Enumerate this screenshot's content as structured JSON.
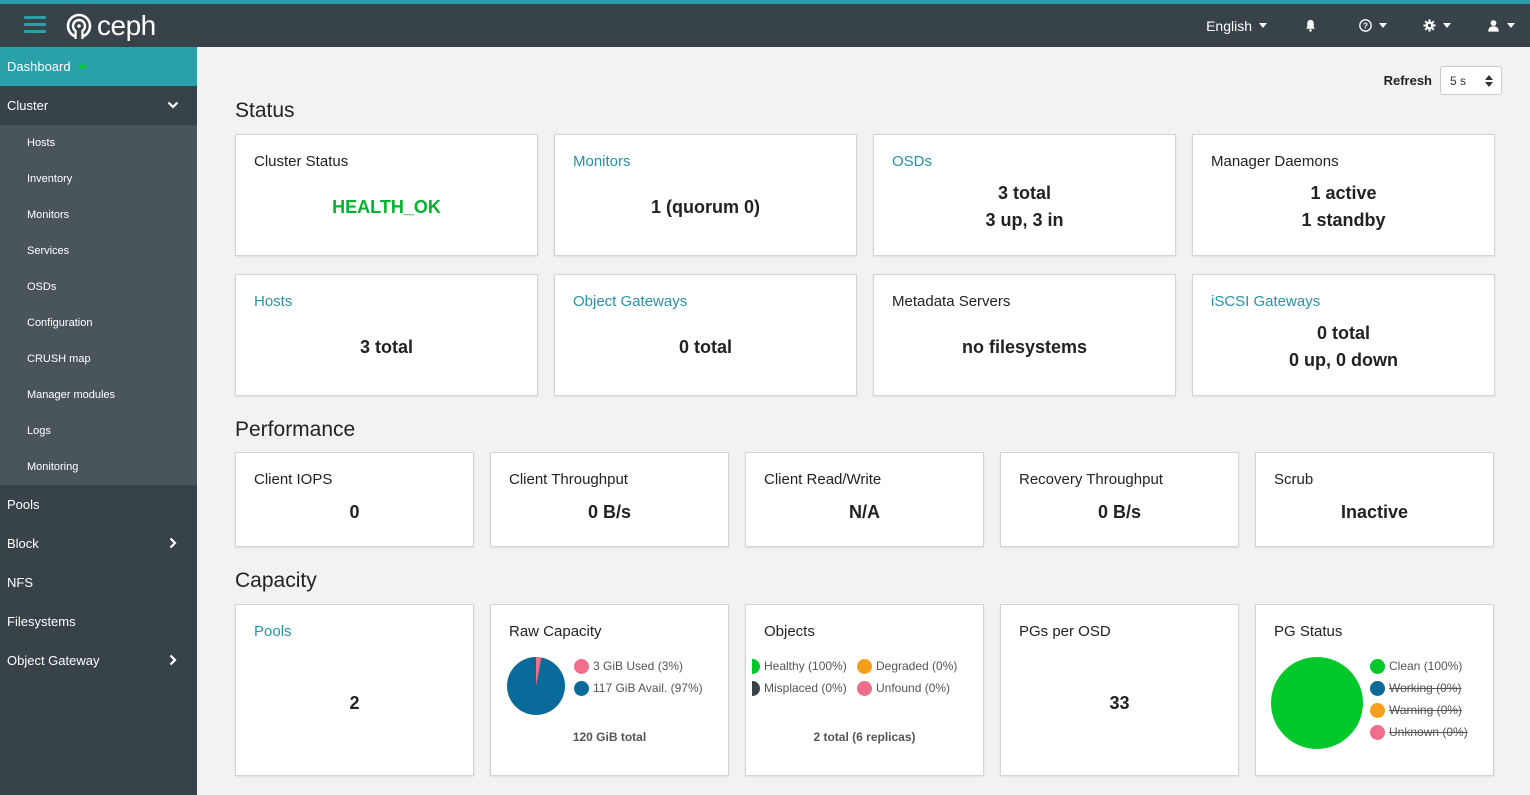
{
  "header": {
    "brand": "ceph",
    "language": "English"
  },
  "sidebar": {
    "items": [
      {
        "label": "Dashboard"
      },
      {
        "label": "Cluster"
      },
      {
        "label": "Pools"
      },
      {
        "label": "Block"
      },
      {
        "label": "NFS"
      },
      {
        "label": "Filesystems"
      },
      {
        "label": "Object Gateway"
      }
    ],
    "cluster_sub": [
      {
        "label": "Hosts"
      },
      {
        "label": "Inventory"
      },
      {
        "label": "Monitors"
      },
      {
        "label": "Services"
      },
      {
        "label": "OSDs"
      },
      {
        "label": "Configuration"
      },
      {
        "label": "CRUSH map"
      },
      {
        "label": "Manager modules"
      },
      {
        "label": "Logs"
      },
      {
        "label": "Monitoring"
      }
    ]
  },
  "refresh": {
    "label": "Refresh",
    "value": "5 s"
  },
  "sections": {
    "status": "Status",
    "performance": "Performance",
    "capacity": "Capacity"
  },
  "status": {
    "cluster_status": {
      "title": "Cluster Status",
      "value": "HEALTH_OK",
      "color": "#00b32d"
    },
    "monitors": {
      "title": "Monitors",
      "value": "1 (quorum 0)"
    },
    "osds": {
      "title": "OSDs",
      "line1": "3 total",
      "line2": "3 up, 3 in"
    },
    "manager": {
      "title": "Manager Daemons",
      "line1": "1 active",
      "line2": "1 standby"
    },
    "hosts": {
      "title": "Hosts",
      "value": "3 total"
    },
    "object_gateways": {
      "title": "Object Gateways",
      "value": "0 total"
    },
    "metadata": {
      "title": "Metadata Servers",
      "value": "no filesystems"
    },
    "iscsi": {
      "title": "iSCSI Gateways",
      "line1": "0 total",
      "line2": "0 up, 0 down"
    }
  },
  "performance": {
    "client_iops": {
      "title": "Client IOPS",
      "value": "0"
    },
    "client_throughput": {
      "title": "Client Throughput",
      "value": "0 B/s"
    },
    "client_rw": {
      "title": "Client Read/Write",
      "value": "N/A"
    },
    "recovery": {
      "title": "Recovery Throughput",
      "value": "0 B/s"
    },
    "scrub": {
      "title": "Scrub",
      "value": "Inactive"
    }
  },
  "capacity": {
    "pools": {
      "title": "Pools",
      "value": "2"
    },
    "raw": {
      "title": "Raw Capacity",
      "used": "3 GiB Used (3%)",
      "avail": "117 GiB Avail. (97%)",
      "total": "120 GiB total",
      "used_fraction": 0.03,
      "used_color": "#f06d8b",
      "avail_color": "#0a6b9a"
    },
    "objects": {
      "title": "Objects",
      "healthy": "Healthy (100%)",
      "degraded": "Degraded (0%)",
      "misplaced": "Misplaced (0%)",
      "unfound": "Unfound (0%)",
      "total": "2 total (6 replicas)"
    },
    "pgs_per_osd": {
      "title": "PGs per OSD",
      "value": "33"
    },
    "pg_status": {
      "title": "PG Status",
      "clean": "Clean (100%)",
      "working": "Working (0%)",
      "warning": "Warning (0%)",
      "unknown": "Unknown (0%)",
      "clean_color": "#00c82a"
    }
  }
}
